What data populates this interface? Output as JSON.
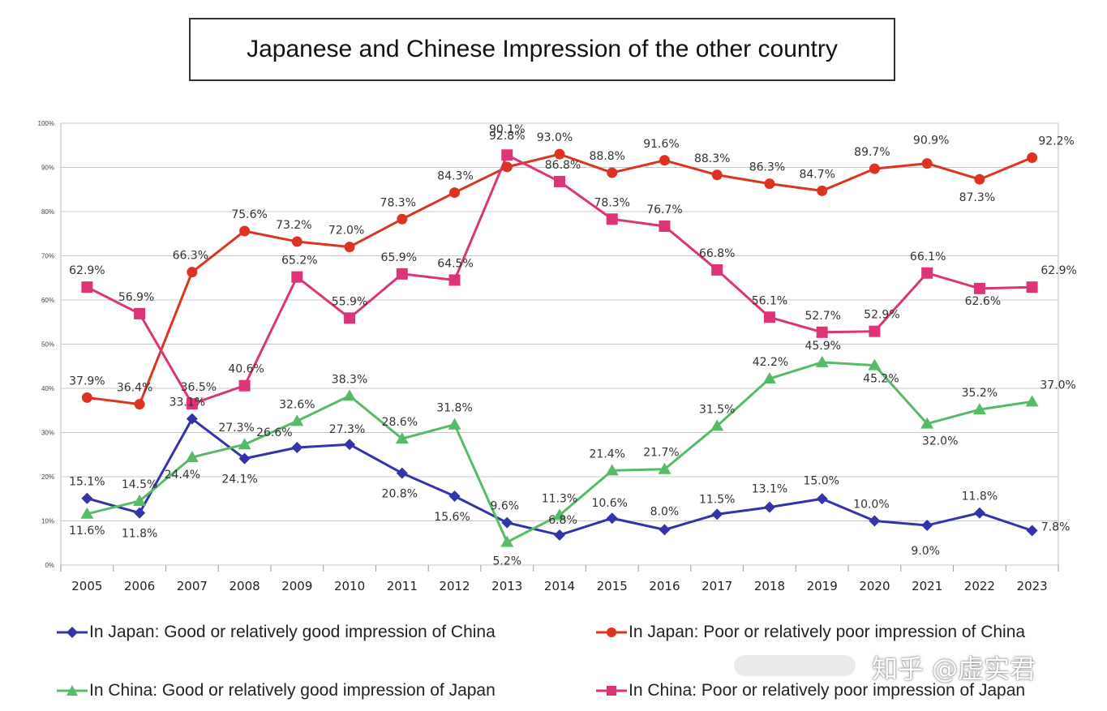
{
  "chart_data": {
    "type": "line",
    "title": "Japanese and Chinese Impression of the other country",
    "xlabel": "",
    "ylabel": "",
    "ylim": [
      0,
      100
    ],
    "y_ticks": [
      "0%",
      "10%",
      "20%",
      "30%",
      "40%",
      "50%",
      "60%",
      "70%",
      "80%",
      "90%",
      "100%"
    ],
    "grid": true,
    "legend_position": "bottom",
    "categories": [
      "2005",
      "2006",
      "2007",
      "2008",
      "2009",
      "2010",
      "2011",
      "2012",
      "2013",
      "2014",
      "2015",
      "2016",
      "2017",
      "2018",
      "2019",
      "2020",
      "2021",
      "2022",
      "2023"
    ],
    "series": [
      {
        "name": "In Japan: Good or relatively good impression of China",
        "color": "#3333aa",
        "marker": "diamond",
        "values": [
          15.1,
          11.8,
          33.1,
          24.1,
          26.6,
          27.3,
          20.8,
          15.6,
          9.6,
          6.8,
          10.6,
          8.0,
          11.5,
          13.1,
          15.0,
          10.0,
          9.0,
          11.8,
          7.8
        ],
        "labels": [
          "15.1%",
          "11.8%",
          "33.1%",
          "24.1%",
          "26.6%",
          "27.3%",
          "20.8%",
          "15.6%",
          "9.6%",
          "6.8%",
          "10.6%",
          "8.0%",
          "11.5%",
          "13.1%",
          "15.0%",
          "10.0%",
          "9.0%",
          "11.8%",
          "7.8%"
        ]
      },
      {
        "name": "In Japan: Poor or relatively poor impression of China",
        "color": "#dd3322",
        "marker": "circle",
        "values": [
          37.9,
          36.4,
          66.3,
          75.6,
          73.2,
          72.0,
          78.3,
          84.3,
          90.1,
          93.0,
          88.8,
          91.6,
          88.3,
          86.3,
          84.7,
          89.7,
          90.9,
          87.3,
          92.2
        ],
        "labels": [
          "37.9%",
          "36.4%",
          "66.3%",
          "75.6%",
          "73.2%",
          "72.0%",
          "78.3%",
          "84.3%",
          "90.1%",
          "93.0%",
          "88.8%",
          "91.6%",
          "88.3%",
          "86.3%",
          "84.7%",
          "89.7%",
          "90.9%",
          "87.3%",
          "92.2%"
        ]
      },
      {
        "name": "In China: Good or relatively good impression of Japan",
        "color": "#55bb66",
        "marker": "triangle",
        "values": [
          11.6,
          14.5,
          24.4,
          27.3,
          32.6,
          38.3,
          28.6,
          31.8,
          5.2,
          11.3,
          21.4,
          21.7,
          31.5,
          42.2,
          45.9,
          45.2,
          32.0,
          35.2,
          37.0
        ],
        "labels": [
          "11.6%",
          "14.5%",
          "24.4%",
          "27.3%",
          "32.6%",
          "38.3%",
          "28.6%",
          "31.8%",
          "5.2%",
          "11.3%",
          "21.4%",
          "21.7%",
          "31.5%",
          "42.2%",
          "45.9%",
          "45.2%",
          "32.0%",
          "35.2%",
          "37.0%"
        ]
      },
      {
        "name": "In China: Poor or relatively poor impression of Japan",
        "color": "#dd3377",
        "marker": "square",
        "values": [
          62.9,
          56.9,
          36.5,
          40.6,
          65.2,
          55.9,
          65.9,
          64.5,
          92.8,
          86.8,
          78.3,
          76.7,
          66.8,
          56.1,
          52.7,
          52.9,
          66.1,
          62.6,
          62.9
        ],
        "labels": [
          "62.9%",
          "56.9%",
          "36.5%",
          "40.6%",
          "65.2%",
          "55.9%",
          "65.9%",
          "64.5%",
          "92.8%",
          "86.8%",
          "78.3%",
          "76.7%",
          "66.8%",
          "56.1%",
          "52.7%",
          "52.9%",
          "66.1%",
          "62.6%",
          "62.9%"
        ]
      }
    ]
  },
  "watermark": "知乎 @虚实君"
}
